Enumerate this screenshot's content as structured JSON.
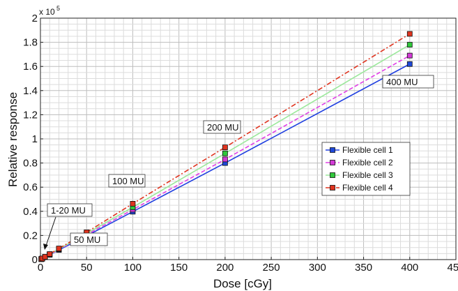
{
  "chart_data": {
    "type": "line",
    "title": "",
    "xlabel": "Dose [cGy]",
    "ylabel": "Relative response",
    "y_multiplier_label": "x 10",
    "y_multiplier_exponent": "5",
    "xlim": [
      0,
      450
    ],
    "ylim": [
      0,
      2
    ],
    "grid": true,
    "x_ticks": [
      0,
      50,
      100,
      150,
      200,
      250,
      300,
      350,
      400,
      450
    ],
    "x_tick_labels": [
      "0",
      "50",
      "100",
      "150",
      "200",
      "250",
      "300",
      "350",
      "400",
      "450"
    ],
    "y_ticks": [
      0,
      0.2,
      0.4,
      0.6,
      0.8,
      1,
      1.2,
      1.4,
      1.6,
      1.8,
      2
    ],
    "y_tick_labels": [
      "0",
      "0.2",
      "0.4",
      "0.6",
      "0.8",
      "1",
      "1.2",
      "1.4",
      "1.6",
      "1.8",
      "2"
    ],
    "legend_position": "right",
    "x": [
      1,
      2,
      5,
      10,
      20,
      50,
      100,
      200,
      400
    ],
    "series": [
      {
        "name": "Flexible cell 1",
        "color": "#1f3fe0",
        "marker_color": "#1f49d8",
        "dash": "solid",
        "values": [
          0.004,
          0.008,
          0.02,
          0.04,
          0.08,
          0.196,
          0.397,
          0.8,
          1.62
        ]
      },
      {
        "name": "Flexible cell 2",
        "color": "#e13ee6",
        "marker_color": "#d33ad6",
        "dash": "dashed",
        "values": [
          0.004,
          0.008,
          0.021,
          0.042,
          0.084,
          0.206,
          0.414,
          0.83,
          1.69
        ]
      },
      {
        "name": "Flexible cell 3",
        "color": "#9be89b",
        "marker_color": "#2fc83a",
        "dash": "solid",
        "values": [
          0.0045,
          0.009,
          0.022,
          0.044,
          0.088,
          0.216,
          0.434,
          0.88,
          1.78
        ]
      },
      {
        "name": "Flexible cell 4",
        "color": "#e0341f",
        "marker_color": "#e0341f",
        "dash": "dashdot",
        "values": [
          0.0047,
          0.0095,
          0.023,
          0.046,
          0.092,
          0.226,
          0.463,
          0.93,
          1.87
        ]
      }
    ],
    "annotations": [
      {
        "text": "1-20 MU"
      },
      {
        "text": "50 MU"
      },
      {
        "text": "100 MU"
      },
      {
        "text": "200 MU"
      },
      {
        "text": "400 MU"
      }
    ]
  }
}
